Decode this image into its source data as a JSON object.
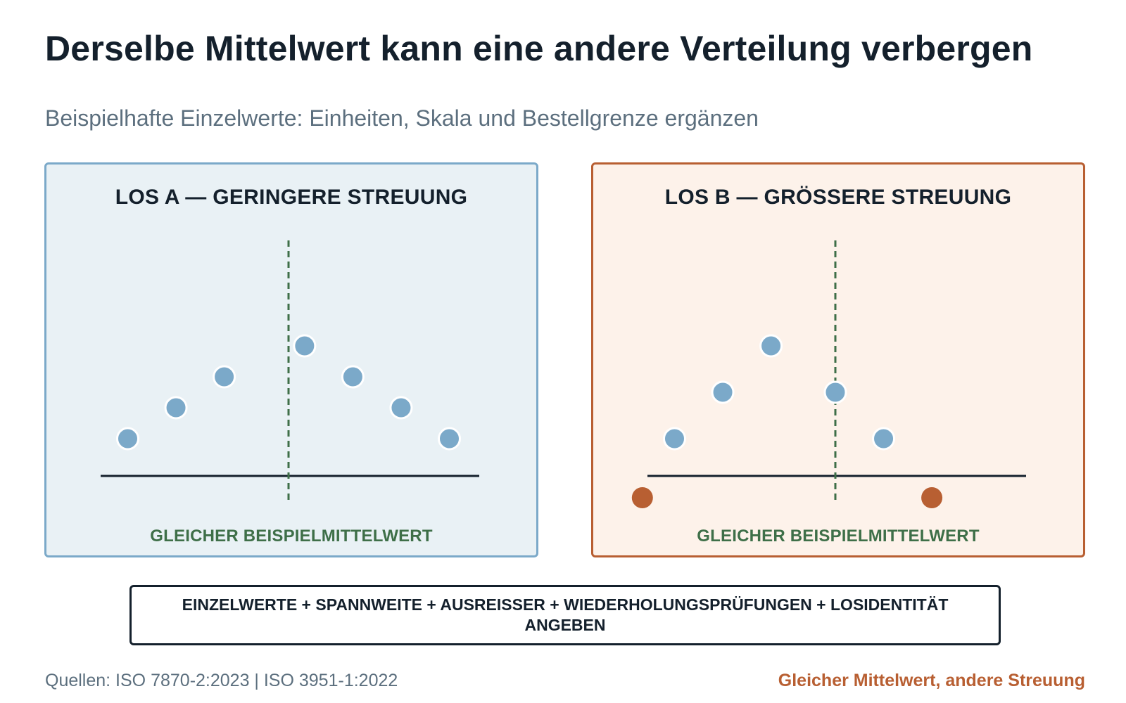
{
  "title": "Derselbe Mittelwert kann eine andere Verteilung verbergen",
  "subtitle": "Beispielhafte Einzelwerte: Einheiten, Skala und Bestellgrenze ergänzen",
  "colors": {
    "point": "#7ba9c9",
    "outlier": "#b85f32",
    "mean_line": "#3e6f48",
    "axis": "#14202c"
  },
  "panels": [
    {
      "title": "LOS A — GERINGERE STREUUNG",
      "mean_label": "GLEICHER BEISPIELMITTELWERT",
      "points": [
        {
          "x": -5,
          "level": 1,
          "kind": "normal"
        },
        {
          "x": -3.5,
          "level": 2,
          "kind": "normal"
        },
        {
          "x": -2,
          "level": 3,
          "kind": "normal"
        },
        {
          "x": 0.5,
          "level": 4,
          "kind": "normal"
        },
        {
          "x": 2,
          "level": 3,
          "kind": "normal"
        },
        {
          "x": 3.5,
          "level": 2,
          "kind": "normal"
        },
        {
          "x": 5,
          "level": 1,
          "kind": "normal"
        }
      ]
    },
    {
      "title": "LOS B — GRÖSSERE STREUUNG",
      "mean_label": "GLEICHER BEISPIELMITTELWERT",
      "points": [
        {
          "x": -6,
          "level": -1,
          "kind": "outlier"
        },
        {
          "x": -5,
          "level": 1,
          "kind": "normal"
        },
        {
          "x": -3.5,
          "level": 2.5,
          "kind": "normal"
        },
        {
          "x": -2,
          "level": 4,
          "kind": "normal"
        },
        {
          "x": 0,
          "level": 2.5,
          "kind": "normal"
        },
        {
          "x": 1.5,
          "level": 1,
          "kind": "normal"
        },
        {
          "x": 3,
          "level": -1,
          "kind": "outlier"
        }
      ]
    }
  ],
  "banner": "EINZELWERTE + SPANNWEITE + AUSREISSER + WIEDERHOLUNGSPRÜFUNGEN + LOSIDENTITÄT ANGEBEN",
  "sources": "Quellen: ISO 7870-2:2023 | ISO 3951-1:2022",
  "footnote": "Gleicher Mittelwert, andere Streuung"
}
